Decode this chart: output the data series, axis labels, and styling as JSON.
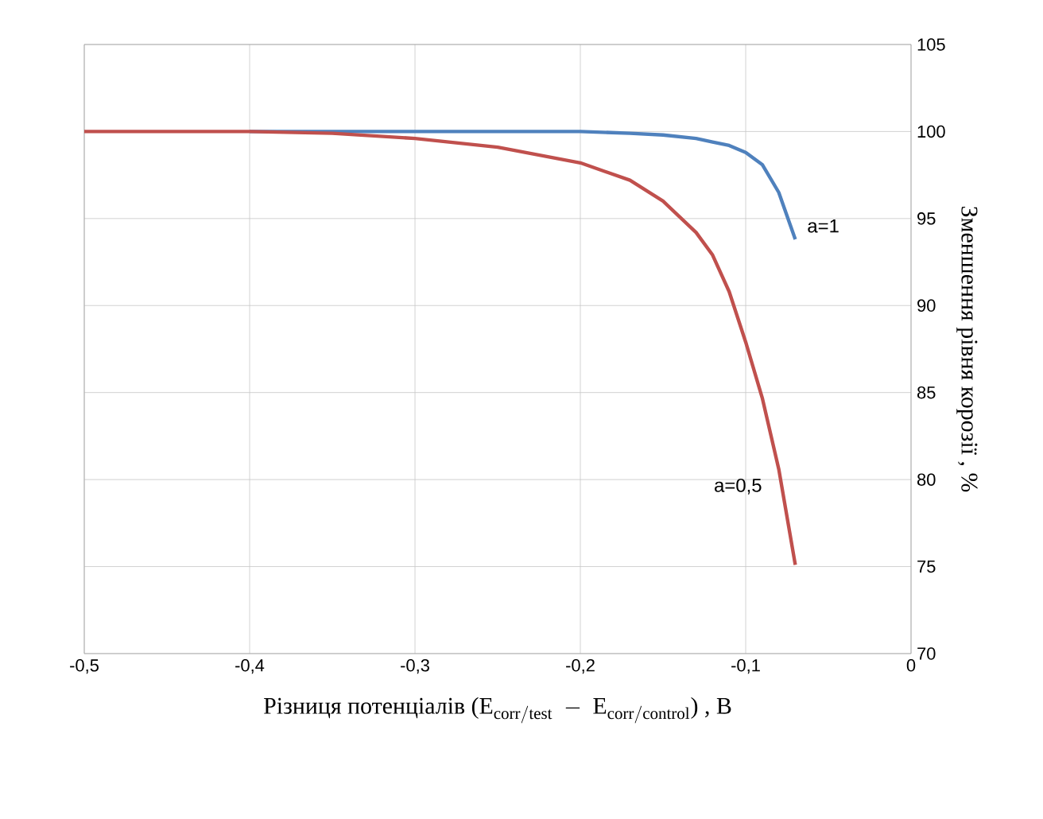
{
  "chart_data": {
    "type": "line",
    "xlabel": "\\text{Різниця потенціалів  (}\\mathrm{E_{corr/test}\\ -\\ E_{corr/control}}\\text{) , В}",
    "ylabel": "Зменшення рівня корозії , %",
    "x": [
      -0.5,
      -0.45,
      -0.4,
      -0.35,
      -0.3,
      -0.25,
      -0.2,
      -0.17,
      -0.15,
      -0.13,
      -0.12,
      -0.11,
      -0.1,
      -0.09,
      -0.08,
      -0.07
    ],
    "series": [
      {
        "color": "#4f81bd",
        "values": [
          null,
          null,
          100,
          100,
          100,
          100,
          100,
          99.9,
          99.8,
          99.6,
          99.4,
          99.2,
          98.8,
          98.1,
          96.5,
          93.8
        ]
      },
      {
        "color": "#c0504d",
        "values": [
          100,
          100,
          100,
          99.9,
          99.6,
          99.1,
          98.2,
          97.2,
          96,
          94.2,
          92.9,
          90.8,
          87.9,
          84.7,
          80.6,
          75.1
        ]
      }
    ],
    "annotations": [
      "a=1",
      "a=0,5"
    ],
    "xlim": [
      -0.5,
      0
    ],
    "ylim": [
      70,
      105
    ],
    "xticks": [
      {
        "value": -0.5,
        "label": "-0,5"
      },
      {
        "value": -0.4,
        "label": "-0,4"
      },
      {
        "value": -0.3,
        "label": "-0,3"
      },
      {
        "value": -0.2,
        "label": "-0,2"
      },
      {
        "value": -0.1,
        "label": "-0,1"
      },
      0
    ],
    "yticks": [
      70,
      75,
      80,
      85,
      90,
      95,
      100,
      105
    ],
    "grid": true,
    "marker": "none",
    "line_style": "solid"
  }
}
